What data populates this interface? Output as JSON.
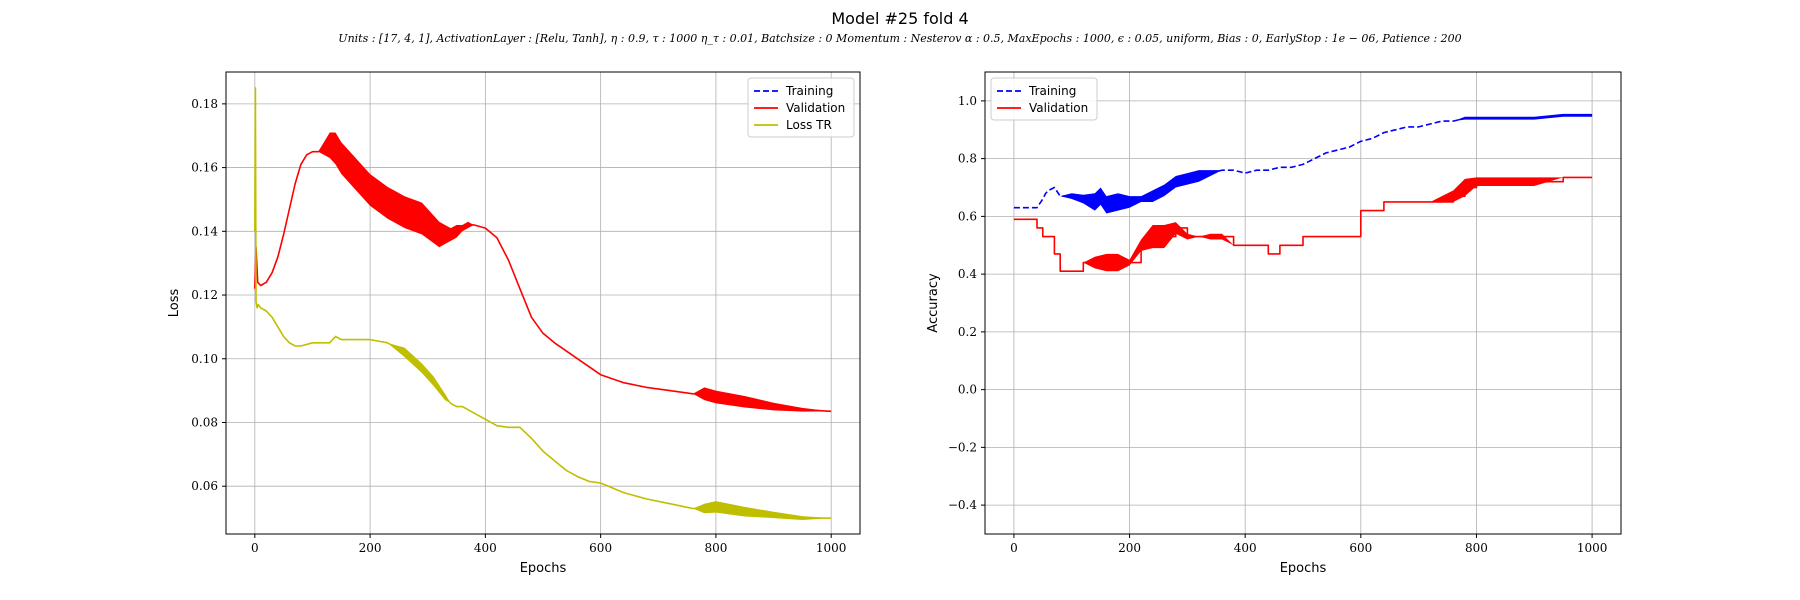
{
  "figure": {
    "title": "Model #25 fold 4",
    "subtitle": "Units : [17, 4, 1], ActivationLayer : [Relu, Tanh], η : 0.9, τ : 1000 η_τ : 0.01, Batchsize : 0 Momentum : Nesterov α : 0.5, MaxEpochs : 1000, ϵ : 0.05, uniform, Bias : 0, EarlyStop : 1e − 06, Patience : 200"
  },
  "chart_data": [
    {
      "type": "line",
      "title": "",
      "xlabel": "Epochs",
      "ylabel": "Loss",
      "xlim": [
        -50,
        1050
      ],
      "ylim": [
        0.045,
        0.19
      ],
      "xticks": [
        0,
        200,
        400,
        600,
        800,
        1000
      ],
      "yticks": [
        0.06,
        0.08,
        0.1,
        0.12,
        0.14,
        0.16,
        0.18
      ],
      "ytick_labels": [
        "0.06",
        "0.08",
        "0.10",
        "0.12",
        "0.14",
        "0.16",
        "0.18"
      ],
      "grid": true,
      "legend_position": "top-right",
      "legend": [
        "Training",
        "Validation",
        "Loss TR"
      ],
      "series": [
        {
          "name": "Validation",
          "color": "#ff0000",
          "style": "solid",
          "x": [
            0,
            2,
            5,
            10,
            20,
            30,
            40,
            50,
            60,
            70,
            80,
            90,
            100,
            110,
            120,
            130,
            140,
            150,
            160,
            180,
            200,
            230,
            260,
            290,
            320,
            330,
            340,
            350,
            360,
            370,
            380,
            400,
            420,
            440,
            460,
            480,
            500,
            520,
            560,
            600,
            640,
            680,
            720,
            760,
            780,
            800,
            850,
            900,
            950,
            1000
          ],
          "y": [
            0.122,
            0.135,
            0.124,
            0.123,
            0.124,
            0.127,
            0.132,
            0.139,
            0.147,
            0.155,
            0.161,
            0.164,
            0.165,
            0.165,
            0.166,
            0.167,
            0.166,
            0.163,
            0.161,
            0.157,
            0.153,
            0.149,
            0.146,
            0.144,
            0.139,
            0.139,
            0.139,
            0.14,
            0.141,
            0.142,
            0.142,
            0.141,
            0.138,
            0.131,
            0.122,
            0.113,
            0.108,
            0.105,
            0.1,
            0.095,
            0.0925,
            0.091,
            0.09,
            0.089,
            0.089,
            0.088,
            0.0865,
            0.085,
            0.084,
            0.0835
          ],
          "band": [
            0,
            0,
            0,
            0,
            0,
            0,
            0,
            0,
            0,
            0,
            0,
            0,
            0,
            0,
            0.002,
            0.004,
            0.005,
            0.005,
            0.005,
            0.005,
            0.005,
            0.005,
            0.005,
            0.005,
            0.004,
            0.003,
            0.002,
            0.002,
            0.001,
            0.001,
            0,
            0,
            0,
            0,
            0,
            0,
            0,
            0,
            0,
            0,
            0,
            0,
            0,
            0,
            0.002,
            0.002,
            0.0018,
            0.0012,
            0.0006,
            0
          ]
        },
        {
          "name": "Loss TR",
          "color": "#bfbf00",
          "style": "solid",
          "x": [
            0,
            1,
            2,
            4,
            6,
            10,
            20,
            30,
            40,
            50,
            60,
            70,
            80,
            100,
            120,
            130,
            140,
            150,
            170,
            200,
            230,
            260,
            290,
            310,
            330,
            340,
            350,
            360,
            370,
            380,
            400,
            420,
            440,
            460,
            480,
            500,
            520,
            540,
            560,
            580,
            600,
            640,
            680,
            720,
            760,
            780,
            800,
            850,
            900,
            950,
            1000
          ],
          "y": [
            0.14,
            0.185,
            0.118,
            0.116,
            0.117,
            0.116,
            0.115,
            0.113,
            0.11,
            0.107,
            0.105,
            0.104,
            0.104,
            0.105,
            0.105,
            0.105,
            0.107,
            0.106,
            0.106,
            0.106,
            0.105,
            0.102,
            0.097,
            0.093,
            0.088,
            0.086,
            0.085,
            0.085,
            0.084,
            0.083,
            0.081,
            0.079,
            0.0785,
            0.0785,
            0.075,
            0.071,
            0.068,
            0.065,
            0.063,
            0.0615,
            0.061,
            0.058,
            0.056,
            0.0545,
            0.053,
            0.053,
            0.0535,
            0.052,
            0.051,
            0.05,
            0.05
          ],
          "band": [
            0,
            0,
            0,
            0,
            0,
            0,
            0,
            0,
            0,
            0,
            0,
            0,
            0,
            0,
            0,
            0,
            0,
            0,
            0,
            0,
            0,
            0.0015,
            0.0015,
            0.0015,
            0.001,
            0,
            0,
            0,
            0,
            0,
            0,
            0,
            0,
            0,
            0,
            0,
            0,
            0,
            0,
            0,
            0,
            0,
            0,
            0,
            0,
            0.0015,
            0.0018,
            0.0015,
            0.001,
            0.0006,
            0
          ]
        }
      ]
    },
    {
      "type": "line",
      "title": "",
      "xlabel": "Epochs",
      "ylabel": "Accuracy",
      "xlim": [
        -50,
        1050
      ],
      "ylim": [
        -0.5,
        1.1
      ],
      "xticks": [
        0,
        200,
        400,
        600,
        800,
        1000
      ],
      "yticks": [
        -0.4,
        -0.2,
        0.0,
        0.2,
        0.4,
        0.6,
        0.8,
        1.0
      ],
      "ytick_labels": [
        "−0.4",
        "−0.2",
        "0.0",
        "0.2",
        "0.4",
        "0.6",
        "0.8",
        "1.0"
      ],
      "grid": true,
      "legend_position": "top-left",
      "legend": [
        "Training",
        "Validation"
      ],
      "series": [
        {
          "name": "Training",
          "color": "#0000ff",
          "style": "dashed",
          "x": [
            0,
            20,
            40,
            50,
            55,
            60,
            70,
            80,
            100,
            120,
            140,
            150,
            160,
            180,
            200,
            220,
            240,
            260,
            280,
            300,
            320,
            340,
            360,
            380,
            400,
            420,
            440,
            460,
            480,
            500,
            520,
            540,
            560,
            580,
            600,
            620,
            640,
            660,
            680,
            700,
            720,
            740,
            760,
            780,
            800,
            850,
            900,
            950,
            1000
          ],
          "y": [
            0.63,
            0.63,
            0.63,
            0.66,
            0.68,
            0.69,
            0.7,
            0.67,
            0.67,
            0.66,
            0.65,
            0.67,
            0.64,
            0.65,
            0.65,
            0.66,
            0.67,
            0.69,
            0.72,
            0.73,
            0.74,
            0.75,
            0.76,
            0.76,
            0.75,
            0.76,
            0.76,
            0.77,
            0.77,
            0.78,
            0.8,
            0.82,
            0.83,
            0.84,
            0.86,
            0.87,
            0.89,
            0.9,
            0.91,
            0.91,
            0.92,
            0.93,
            0.93,
            0.94,
            0.94,
            0.94,
            0.94,
            0.95,
            0.95
          ],
          "band": [
            0,
            0,
            0,
            0,
            0,
            0,
            0,
            0,
            0.01,
            0.015,
            0.03,
            0.03,
            0.03,
            0.03,
            0.02,
            0.01,
            0.02,
            0.02,
            0.02,
            0.02,
            0.02,
            0.01,
            0,
            0,
            0,
            0,
            0,
            0,
            0,
            0,
            0,
            0,
            0,
            0,
            0,
            0,
            0,
            0,
            0,
            0,
            0,
            0,
            0,
            0.005,
            0.005,
            0.005,
            0.005,
            0.005,
            0.005
          ]
        },
        {
          "name": "Validation",
          "color": "#ff0000",
          "style": "step",
          "x": [
            0,
            40,
            50,
            60,
            70,
            80,
            100,
            120,
            140,
            160,
            180,
            200,
            220,
            240,
            260,
            280,
            300,
            320,
            340,
            360,
            380,
            400,
            420,
            440,
            460,
            480,
            500,
            520,
            540,
            560,
            580,
            600,
            620,
            640,
            660,
            680,
            700,
            720,
            760,
            780,
            800,
            850,
            900,
            950,
            1000
          ],
          "y": [
            0.59,
            0.56,
            0.53,
            0.53,
            0.47,
            0.41,
            0.41,
            0.44,
            0.44,
            0.44,
            0.44,
            0.44,
            0.5,
            0.53,
            0.53,
            0.56,
            0.53,
            0.53,
            0.53,
            0.53,
            0.5,
            0.5,
            0.5,
            0.47,
            0.5,
            0.5,
            0.53,
            0.53,
            0.53,
            0.53,
            0.53,
            0.62,
            0.62,
            0.65,
            0.65,
            0.65,
            0.65,
            0.65,
            0.67,
            0.7,
            0.72,
            0.72,
            0.72,
            0.735,
            0.735
          ],
          "band": [
            0,
            0,
            0,
            0,
            0,
            0,
            0,
            0,
            0.02,
            0.03,
            0.03,
            0.01,
            0.02,
            0.04,
            0.04,
            0.02,
            0.01,
            0,
            0.01,
            0.01,
            0,
            0,
            0,
            0,
            0,
            0,
            0,
            0,
            0,
            0,
            0,
            0,
            0,
            0,
            0,
            0,
            0,
            0,
            0.02,
            0.03,
            0.015,
            0.015,
            0.015,
            0,
            0
          ]
        }
      ]
    }
  ]
}
